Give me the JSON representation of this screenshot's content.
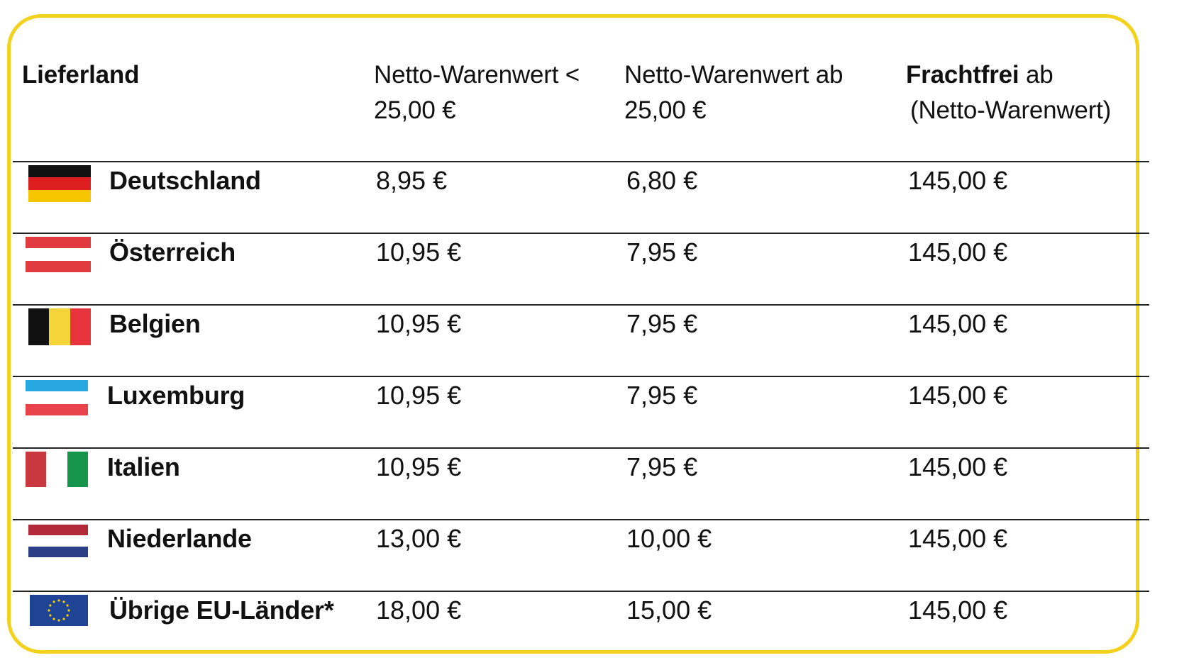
{
  "header": {
    "lieferland": "Lieferland",
    "col1_line1": "Netto-Warenwert <",
    "col1_line2": "25,00 €",
    "col2_line1": "Netto-Warenwert ab",
    "col2_line2": "25,00 €",
    "col3_bold": "Frachtfrei",
    "col3_rest": " ab",
    "col3_line2": "(Netto-Warenwert)"
  },
  "rows": [
    {
      "country": "Deutschland",
      "flag_icon": "germany-flag-icon",
      "lt25": "8,95 €",
      "ab25": "6,80 €",
      "frachtfrei": "145,00 €"
    },
    {
      "country": "Österreich",
      "flag_icon": "austria-flag-icon",
      "lt25": "10,95 €",
      "ab25": "7,95 €",
      "frachtfrei": "145,00 €"
    },
    {
      "country": "Belgien",
      "flag_icon": "belgium-flag-icon",
      "lt25": "10,95 €",
      "ab25": "7,95 €",
      "frachtfrei": "145,00 €"
    },
    {
      "country": "Luxemburg",
      "flag_icon": "luxembourg-flag-icon",
      "lt25": "10,95 €",
      "ab25": "7,95 €",
      "frachtfrei": "145,00 €"
    },
    {
      "country": "Italien",
      "flag_icon": "italy-flag-icon",
      "lt25": "10,95 €",
      "ab25": "7,95 €",
      "frachtfrei": "145,00 €"
    },
    {
      "country": "Niederlande",
      "flag_icon": "netherlands-flag-icon",
      "lt25": "13,00 €",
      "ab25": "10,00 €",
      "frachtfrei": "145,00 €"
    },
    {
      "country": "Übrige EU-Länder*",
      "flag_icon": "eu-flag-icon",
      "lt25": "18,00 €",
      "ab25": "15,00 €",
      "frachtfrei": "145,00 €"
    }
  ],
  "colors": {
    "frame_border": "#f2d21c",
    "row_divider": "#222222"
  }
}
